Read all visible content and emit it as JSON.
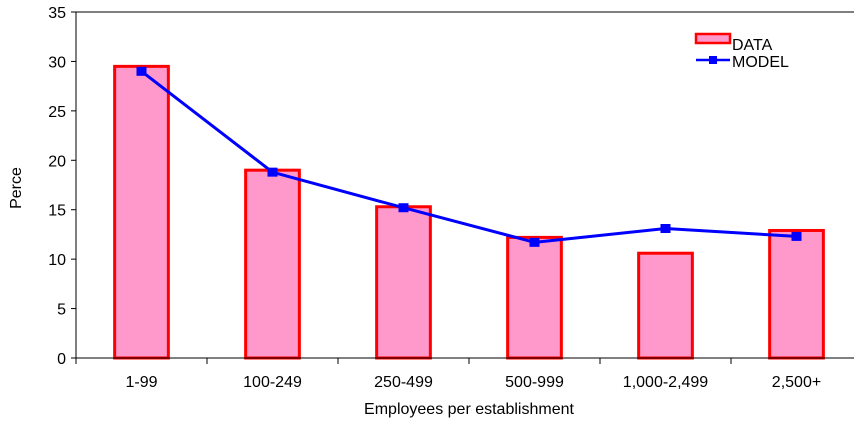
{
  "chart_data": {
    "type": "bar",
    "categories": [
      "1-99",
      "100-249",
      "250-499",
      "500-999",
      "1,000-2,499",
      "2,500+"
    ],
    "series": [
      {
        "name": "DATA",
        "type": "bar",
        "values": [
          29.5,
          19.0,
          15.3,
          12.2,
          10.6,
          12.9
        ],
        "color": "#ff99cc",
        "stroke": "#ff0000"
      },
      {
        "name": "MODEL",
        "type": "line",
        "values": [
          29.0,
          18.8,
          15.2,
          11.7,
          13.1,
          12.3
        ],
        "color": "#0000ff",
        "markers": [
          true,
          true,
          true,
          true,
          true,
          true
        ]
      }
    ],
    "xlabel": "Employees per establishment",
    "ylabel": "Perce",
    "ylim": [
      0,
      35
    ],
    "yticks": [
      "0",
      "5",
      "10",
      "15",
      "20",
      "25",
      "30",
      "35"
    ],
    "grid": false,
    "legend": "top-right"
  }
}
